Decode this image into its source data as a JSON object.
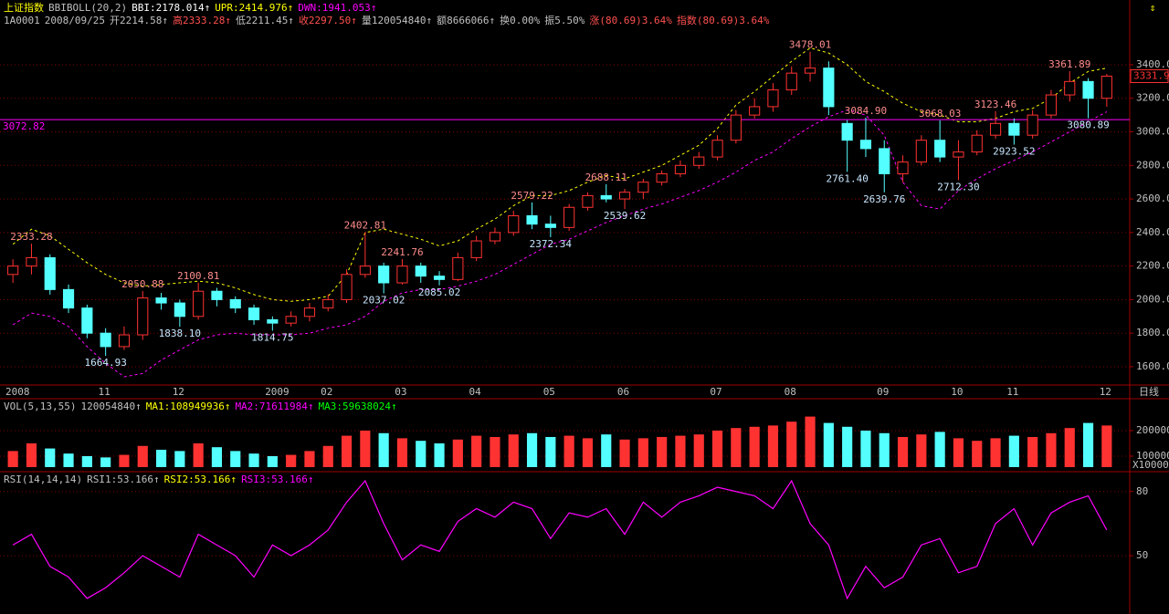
{
  "chart_data": [
    {
      "type": "candlestick",
      "header": [
        [
          {
            "text": "上证指数",
            "color": "#ffff00"
          },
          {
            "text": "BBIBOLL(20,2)",
            "color": "#c0c0c0"
          },
          {
            "text": "BBI:2178.014↑",
            "color": "#ffffff"
          },
          {
            "text": "UPR:2414.976↑",
            "color": "#ffff00"
          },
          {
            "text": "DWN:1941.053↑",
            "color": "#ff00ff"
          }
        ],
        [
          {
            "text": "1A0001",
            "color": "#c0c0c0"
          },
          {
            "text": "2008/09/25",
            "color": "#c0c0c0"
          },
          {
            "text": "开2214.58↑",
            "color": "#c0c0c0"
          },
          {
            "text": "高2333.28↑",
            "color": "#ff5050"
          },
          {
            "text": "低2211.45↑",
            "color": "#c0c0c0"
          },
          {
            "text": "收2297.50↑",
            "color": "#ff5050"
          },
          {
            "text": "量120054840↑",
            "color": "#c0c0c0"
          },
          {
            "text": "额8666066↑",
            "color": "#c0c0c0"
          },
          {
            "text": "换0.00%",
            "color": "#c0c0c0"
          },
          {
            "text": "振5.50%",
            "color": "#c0c0c0"
          },
          {
            "text": "涨(80.69)3.64%",
            "color": "#ff5050"
          },
          {
            "text": "指数(80.69)3.64%",
            "color": "#ff5050"
          }
        ]
      ],
      "categories": [
        "2008",
        null,
        null,
        null,
        null,
        "11",
        null,
        null,
        null,
        "12",
        null,
        null,
        null,
        null,
        "2009",
        null,
        null,
        "02",
        null,
        null,
        null,
        "03",
        null,
        null,
        null,
        "04",
        null,
        null,
        null,
        "05",
        null,
        null,
        null,
        "06",
        null,
        null,
        null,
        null,
        "07",
        null,
        null,
        null,
        "08",
        null,
        null,
        null,
        null,
        "09",
        null,
        null,
        null,
        "10",
        null,
        null,
        "11",
        null,
        null,
        null,
        null,
        "12"
      ],
      "open": [
        2150,
        2200,
        2250,
        2060,
        1950,
        1800,
        1720,
        1790,
        2010,
        1980,
        1900,
        2050,
        2000,
        1950,
        1880,
        1860,
        1900,
        1950,
        2000,
        2150,
        2200,
        2100,
        2200,
        2140,
        2120,
        2250,
        2350,
        2400,
        2500,
        2450,
        2430,
        2550,
        2620,
        2600,
        2640,
        2700,
        2750,
        2800,
        2850,
        2950,
        3100,
        3150,
        3250,
        3350,
        3380,
        3050,
        2950,
        2900,
        2750,
        2820,
        2950,
        2850,
        2880,
        2980,
        3050,
        2980,
        3100,
        3220,
        3300,
        3200
      ],
      "high": [
        2240,
        2333.28,
        2270,
        2090,
        1970,
        1830,
        1840,
        2050.88,
        2040,
        2000,
        2100.81,
        2070,
        2020,
        1970,
        1900,
        1930,
        1980,
        2030,
        2180,
        2402.81,
        2220,
        2241.76,
        2220,
        2170,
        2280,
        2380,
        2430,
        2530,
        2579.22,
        2500,
        2570,
        2640,
        2688.11,
        2660,
        2720,
        2770,
        2830,
        2880,
        2980,
        3130,
        3200,
        3290,
        3390,
        3478.01,
        3420,
        3070,
        3084.9,
        2950,
        2860,
        2980,
        3068.03,
        2950,
        3010,
        3123.46,
        3080,
        3130,
        3250,
        3361.89,
        3320,
        3345
      ],
      "low": [
        2100,
        2150,
        2030,
        1920,
        1770,
        1664.93,
        1700,
        1760,
        1940,
        1838.1,
        1880,
        1960,
        1920,
        1850,
        1814.75,
        1840,
        1870,
        1930,
        1980,
        2130,
        2037.02,
        2090,
        2100,
        2085.02,
        2110,
        2230,
        2330,
        2380,
        2420,
        2372.34,
        2410,
        2530,
        2580,
        2539.62,
        2600,
        2680,
        2730,
        2780,
        2830,
        2930,
        3080,
        3120,
        3220,
        3300,
        3100,
        2761.4,
        2850,
        2639.76,
        2700,
        2800,
        2820,
        2712.3,
        2860,
        2960,
        2923.52,
        2960,
        3080,
        3180,
        3080.89,
        3150
      ],
      "close": [
        2200,
        2250,
        2060,
        1950,
        1800,
        1720,
        1790,
        2010,
        1980,
        1900,
        2050,
        2000,
        1950,
        1880,
        1860,
        1900,
        1950,
        2000,
        2150,
        2200,
        2100,
        2200,
        2140,
        2120,
        2250,
        2350,
        2400,
        2500,
        2450,
        2430,
        2550,
        2620,
        2600,
        2640,
        2700,
        2750,
        2800,
        2850,
        2950,
        3100,
        3150,
        3250,
        3350,
        3380,
        3150,
        2950,
        2900,
        2750,
        2820,
        2950,
        2850,
        2880,
        2980,
        3050,
        2980,
        3100,
        3220,
        3300,
        3200,
        3331.9
      ],
      "high_labels": [
        null,
        "2333.28",
        null,
        null,
        null,
        null,
        null,
        "2050.88",
        null,
        null,
        "2100.81",
        null,
        null,
        null,
        null,
        null,
        null,
        null,
        null,
        "2402.81",
        null,
        "2241.76",
        null,
        null,
        null,
        null,
        null,
        null,
        "2579.22",
        null,
        null,
        null,
        "2688.11",
        null,
        null,
        null,
        null,
        null,
        null,
        null,
        null,
        null,
        null,
        "3478.01",
        null,
        null,
        "3084.90",
        null,
        null,
        null,
        "3068.03",
        null,
        null,
        "3123.46",
        null,
        null,
        null,
        "3361.89",
        null,
        null
      ],
      "low_labels": [
        null,
        null,
        null,
        null,
        null,
        "1664.93",
        null,
        null,
        null,
        "1838.10",
        null,
        null,
        null,
        null,
        "1814.75",
        null,
        null,
        null,
        null,
        null,
        "2037.02",
        null,
        null,
        "2085.02",
        null,
        null,
        null,
        null,
        null,
        "2372.34",
        null,
        null,
        null,
        "2539.62",
        null,
        null,
        null,
        null,
        null,
        null,
        null,
        null,
        null,
        null,
        null,
        "2761.40",
        null,
        "2639.76",
        null,
        null,
        null,
        "2712.30",
        null,
        null,
        "2923.52",
        null,
        null,
        null,
        "3080.89",
        null
      ],
      "upper": [
        2330,
        2420,
        2380,
        2300,
        2220,
        2150,
        2100,
        2080,
        2090,
        2100,
        2110,
        2100,
        2070,
        2030,
        2000,
        1990,
        2000,
        2020,
        2150,
        2400,
        2420,
        2390,
        2360,
        2320,
        2350,
        2420,
        2480,
        2560,
        2620,
        2620,
        2650,
        2700,
        2740,
        2720,
        2760,
        2800,
        2860,
        2920,
        3020,
        3160,
        3240,
        3330,
        3420,
        3500,
        3470,
        3400,
        3300,
        3240,
        3170,
        3120,
        3100,
        3060,
        3060,
        3080,
        3120,
        3140,
        3200,
        3290,
        3360,
        3380
      ],
      "lower": [
        1850,
        1920,
        1900,
        1840,
        1720,
        1620,
        1540,
        1560,
        1640,
        1700,
        1760,
        1790,
        1800,
        1790,
        1790,
        1790,
        1800,
        1830,
        1850,
        1900,
        1990,
        2040,
        2060,
        2060,
        2080,
        2110,
        2150,
        2210,
        2270,
        2330,
        2360,
        2410,
        2460,
        2500,
        2540,
        2570,
        2610,
        2650,
        2700,
        2760,
        2830,
        2880,
        2960,
        3030,
        3090,
        3130,
        3100,
        2980,
        2700,
        2560,
        2540,
        2650,
        2720,
        2780,
        2830,
        2880,
        2940,
        3000,
        3060,
        3120
      ],
      "up_color": "#ff3232",
      "down_color": "#54ffff",
      "upper_color": "#ffff00",
      "lower_color": "#ff00ff",
      "ylim": [
        1502,
        3677
      ],
      "yticks": [
        {
          "value": 1600,
          "label": "1600.0"
        },
        {
          "value": 1800,
          "label": "1800.0"
        },
        {
          "value": 2000,
          "label": "2000.0"
        },
        {
          "value": 2200,
          "label": "2200.0"
        },
        {
          "value": 2400,
          "label": "2400.0"
        },
        {
          "value": 2600,
          "label": "2600.0"
        },
        {
          "value": 2800,
          "label": "2800.0"
        },
        {
          "value": 3000,
          "label": "3000.0"
        },
        {
          "value": 3200,
          "label": "3200.0"
        },
        {
          "value": 3400,
          "label": "3400.0"
        }
      ],
      "grid": true,
      "hline": 3072.82,
      "hline_color": "#ff00ff",
      "current": 3331.9,
      "period": "日线"
    },
    {
      "type": "bar",
      "header": [
        [
          {
            "text": "VOL(5,13,55)",
            "color": "#c0c0c0"
          },
          {
            "text": "120054840↑",
            "color": "#c0c0c0"
          },
          {
            "text": "MA1:108949936↑",
            "color": "#ffff00"
          },
          {
            "text": "MA2:71611984↑",
            "color": "#ff00ff"
          },
          {
            "text": "MA3:59638024↑",
            "color": "#00ff00"
          }
        ]
      ],
      "values": [
        120000,
        150000,
        130000,
        110000,
        100000,
        95000,
        105000,
        140000,
        125000,
        120000,
        150000,
        135000,
        120000,
        110000,
        100000,
        105000,
        120000,
        140000,
        180000,
        200000,
        190000,
        170000,
        160000,
        150000,
        165000,
        180000,
        175000,
        185000,
        190000,
        175000,
        180000,
        170000,
        185000,
        165000,
        170000,
        175000,
        180000,
        185000,
        200000,
        210000,
        215000,
        220000,
        235000,
        255000,
        230000,
        215000,
        200000,
        190000,
        175000,
        185000,
        195000,
        170000,
        160000,
        170000,
        180000,
        175000,
        190000,
        210000,
        230000,
        220000
      ],
      "ylim": [
        57000,
        275000
      ],
      "yticks": [
        100000,
        200000
      ],
      "unit": "X10000",
      "grid": true
    },
    {
      "type": "line",
      "header": [
        [
          {
            "text": "RSI(14,14,14)",
            "color": "#c0c0c0"
          },
          {
            "text": "RSI1:53.166↑",
            "color": "#c0c0c0"
          },
          {
            "text": "RSI2:53.166↑",
            "color": "#ffff00"
          },
          {
            "text": "RSI3:53.166↑",
            "color": "#ff00ff"
          }
        ]
      ],
      "values": [
        55,
        60,
        45,
        40,
        30,
        35,
        42,
        50,
        45,
        40,
        60,
        55,
        50,
        40,
        55,
        50,
        55,
        62,
        75,
        85,
        65,
        48,
        55,
        52,
        66,
        72,
        68,
        75,
        72,
        58,
        70,
        68,
        72,
        60,
        75,
        68,
        75,
        78,
        82,
        80,
        78,
        72,
        85,
        65,
        55,
        30,
        45,
        35,
        40,
        55,
        58,
        42,
        45,
        65,
        72,
        55,
        70,
        75,
        78,
        62
      ],
      "color": "#ff00ff",
      "ylim": [
        24,
        88
      ],
      "yticks": [
        50,
        80
      ],
      "grid": true
    }
  ]
}
